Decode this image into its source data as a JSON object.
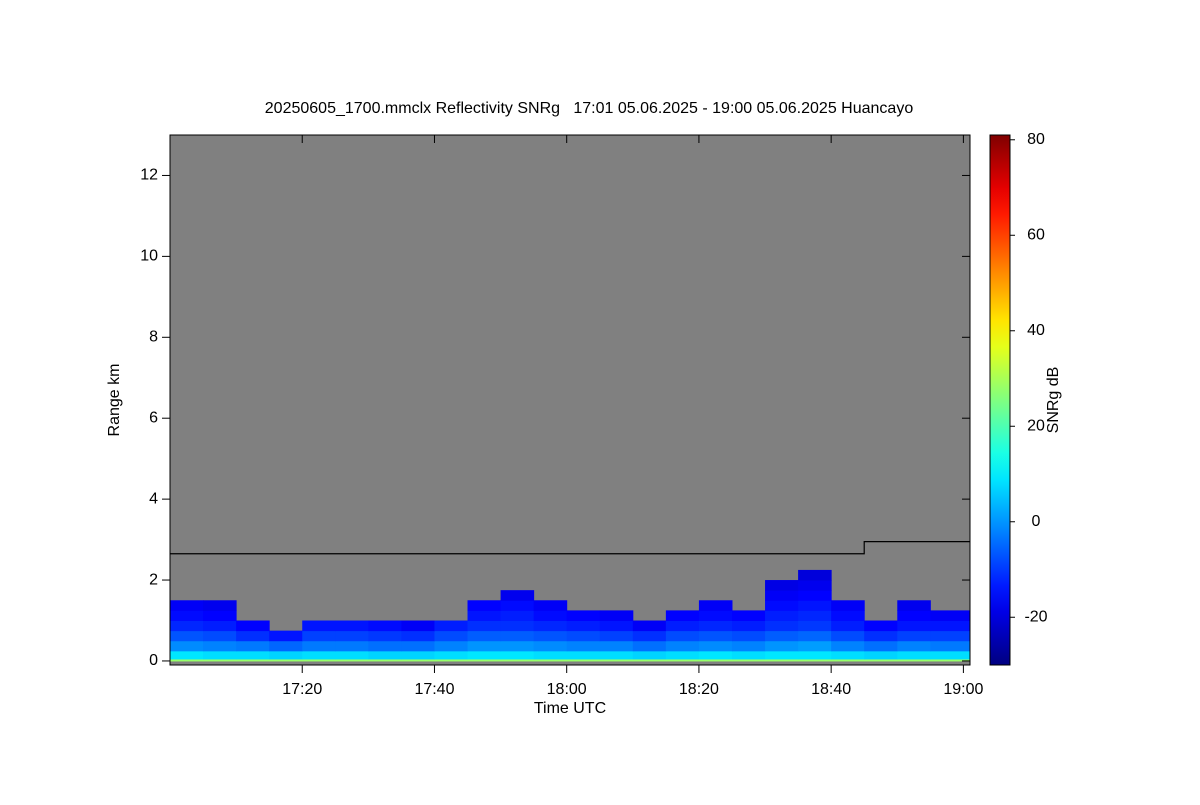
{
  "chart_data": {
    "type": "heatmap",
    "title": "20250605_1700.mmclx Reflectivity SNRg   17:01 05.06.2025 - 19:00 05.06.2025 Huancayo",
    "xlabel": "Time UTC",
    "ylabel": "Range km",
    "colorbar_label": "SNRg dB",
    "colormap": "jet",
    "background": "#808080",
    "xlim": [
      0,
      121
    ],
    "xticks": [
      {
        "value": 20,
        "label": "17:20"
      },
      {
        "value": 40,
        "label": "17:40"
      },
      {
        "value": 60,
        "label": "18:00"
      },
      {
        "value": 80,
        "label": "18:20"
      },
      {
        "value": 100,
        "label": "18:40"
      },
      {
        "value": 120,
        "label": "19:00"
      }
    ],
    "ylim": [
      -0.1,
      13
    ],
    "yticks": [
      0,
      2,
      4,
      6,
      8,
      10,
      12
    ],
    "zlim": [
      -30,
      81
    ],
    "zticks": [
      -20,
      0,
      20,
      40,
      60,
      80
    ],
    "xbins": [
      0,
      5,
      10,
      15,
      20,
      25,
      30,
      35,
      40,
      45,
      50,
      55,
      60,
      65,
      70,
      75,
      80,
      85,
      90,
      95,
      100,
      105,
      110,
      115,
      121
    ],
    "ybins": [
      0,
      0.05,
      0.25,
      0.5,
      0.75,
      1.0,
      1.25,
      1.5,
      1.75,
      2.0,
      2.25
    ],
    "z": [
      [
        28,
        28,
        28,
        28,
        28,
        28,
        28,
        28,
        28,
        28,
        28,
        28,
        28,
        28,
        28,
        28,
        28,
        28,
        28,
        28,
        28,
        28,
        28,
        28
      ],
      [
        9,
        8,
        8,
        7,
        8,
        8,
        7,
        7,
        8,
        9,
        9,
        8,
        8,
        8,
        7,
        8,
        9,
        8,
        9,
        9,
        8,
        7,
        8,
        8
      ],
      [
        -1,
        -2,
        -3,
        -5,
        -3,
        -3,
        -4,
        -4,
        -2,
        0,
        0,
        -1,
        -2,
        -2,
        -4,
        -2,
        -1,
        -2,
        0,
        1,
        -2,
        -4,
        -2,
        -3
      ],
      [
        -7,
        -8,
        -11,
        -14,
        -9,
        -9,
        -10,
        -11,
        -8,
        -6,
        -6,
        -7,
        -8,
        -9,
        -11,
        -8,
        -7,
        -8,
        -6,
        -5,
        -8,
        -11,
        -9,
        -9
      ],
      [
        -12,
        -13,
        -16,
        null,
        -14,
        -14,
        -15,
        -17,
        -13,
        -11,
        -11,
        -12,
        -13,
        -14,
        -17,
        -13,
        -12,
        -13,
        -11,
        -10,
        -13,
        -16,
        -14,
        -14
      ],
      [
        -15,
        -16,
        null,
        null,
        null,
        null,
        null,
        null,
        null,
        -14,
        -13,
        -15,
        -16,
        -17,
        null,
        -16,
        -15,
        -16,
        -13,
        -12,
        -15,
        null,
        -16,
        -17
      ],
      [
        -17,
        -18,
        null,
        null,
        null,
        null,
        null,
        null,
        null,
        -16,
        -15,
        -17,
        null,
        null,
        null,
        null,
        -17,
        null,
        -15,
        -14,
        -17,
        null,
        -18,
        null
      ],
      [
        null,
        null,
        null,
        null,
        null,
        null,
        null,
        null,
        null,
        null,
        -18,
        null,
        null,
        null,
        null,
        null,
        null,
        null,
        -17,
        -16,
        null,
        null,
        null,
        null
      ],
      [
        null,
        null,
        null,
        null,
        null,
        null,
        null,
        null,
        null,
        null,
        null,
        null,
        null,
        null,
        null,
        null,
        null,
        null,
        -19,
        -18,
        null,
        null,
        null,
        null
      ],
      [
        null,
        null,
        null,
        null,
        null,
        null,
        null,
        null,
        null,
        null,
        null,
        null,
        null,
        null,
        null,
        null,
        null,
        null,
        null,
        -20,
        null,
        null,
        null,
        null
      ]
    ],
    "lines": [
      {
        "x": [
          0,
          105,
          105,
          121
        ],
        "y": [
          2.65,
          2.65,
          2.95,
          2.95
        ],
        "color": "#000000"
      }
    ]
  }
}
